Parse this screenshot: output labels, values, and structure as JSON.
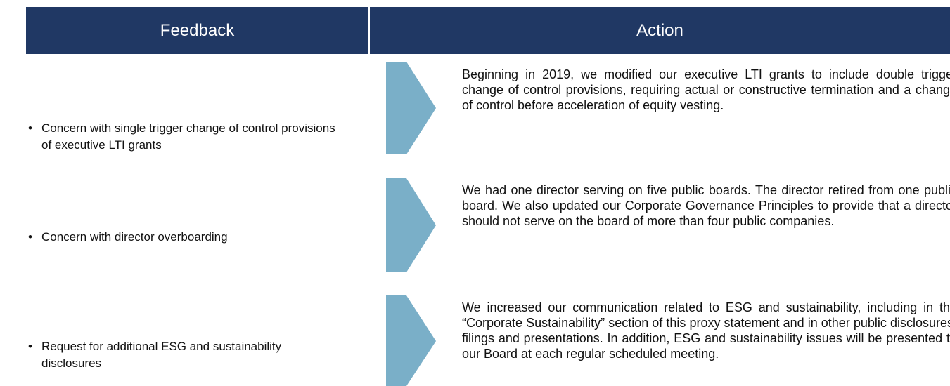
{
  "header": {
    "feedback": "Feedback",
    "action": "Action"
  },
  "rows": [
    {
      "feedback": "Concern with single trigger change of control provisions of executive LTI grants",
      "action": "Beginning in 2019, we modified our executive LTI grants to include double trigger change of control provisions, requiring actual or constructive termination and a change of control before acceleration of equity vesting."
    },
    {
      "feedback": "Concern with director overboarding",
      "action": "We had one director serving on five public boards. The director retired from one public board. We also updated our Corporate Governance Principles to provide that a director should not serve on the board of more than four public companies."
    },
    {
      "feedback": "Request for additional ESG and sustainability disclosures",
      "action": "We increased our communication related to ESG and sustainability, including in the “Corporate Sustainability” section of this proxy statement and in other public disclosures, filings and presentations. In addition, ESG and sustainability issues will be presented to our Board at each regular scheduled meeting."
    }
  ]
}
